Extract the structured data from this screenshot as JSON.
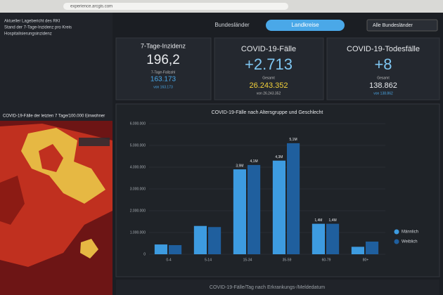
{
  "browser": {
    "url": "experience.arcgis.com"
  },
  "sidebar": {
    "lines": [
      "Aktueller Lagebericht des RKI",
      "Stand der 7-Tage-Inzidenz pro Kreis",
      "Hospitalisierungsinzidenz"
    ],
    "map_title": "COVID-19-Fälle der letzten 7 Tage/100.000 Einwohner"
  },
  "tabs": {
    "items": [
      "Bundesländer",
      "Landkreise"
    ],
    "active": 1,
    "dropdown": "Alle Bundesländer"
  },
  "kpis": [
    {
      "title": "7-Tage-Inzidenz",
      "value": "196,2",
      "sub_label": "7-Tage-Fallzahl",
      "sub_value": "163.173",
      "note": "von 163.173"
    },
    {
      "title": "COVID-19-Fälle",
      "value": "+2.713",
      "sub_label": "Gesamt",
      "sub_value": "26.243.352",
      "note": "von 26.243.352"
    },
    {
      "title": "COVID-19-Todesfälle",
      "value": "+8",
      "sub_label": "Gesamt",
      "sub_value": "138.862",
      "note": "von 138.862"
    }
  ],
  "chart_data": {
    "type": "bar",
    "title": "COVID-19-Fälle nach Altersgruppe und Geschlecht",
    "categories": [
      "0-4",
      "5-14",
      "15-34",
      "35-59",
      "60-79",
      "80+"
    ],
    "series": [
      {
        "name": "Männlich",
        "color": "#3d9be0",
        "values": [
          450000,
          1300000,
          3900000,
          4300000,
          1400000,
          342870
        ],
        "value_labels": [
          null,
          null,
          "3,9M",
          "4,3M",
          "1,4M",
          null
        ]
      },
      {
        "name": "Weiblich",
        "color": "#1f5f9e",
        "values": [
          420000,
          1250000,
          4100000,
          5100000,
          1400000,
          582270
        ],
        "value_labels": [
          null,
          null,
          "4,1M",
          "5,1M",
          "1,4M",
          null
        ]
      }
    ],
    "ylim": [
      0,
      6000000
    ],
    "yticks": [
      {
        "value": 0,
        "label": "0"
      },
      {
        "value": 1000000,
        "label": "1.000.000"
      },
      {
        "value": 2000000,
        "label": "2.000.000"
      },
      {
        "value": 3000000,
        "label": "3.000.000"
      },
      {
        "value": 4000000,
        "label": "4.000.000"
      },
      {
        "value": 5000000,
        "label": "5.000.000"
      },
      {
        "value": 6000000,
        "label": "6.000.000"
      }
    ],
    "grid": true,
    "legend": "right"
  },
  "footer": {
    "title": "COVID-19-Fälle/Tag nach Erkrankungs-/Meldedatum"
  }
}
